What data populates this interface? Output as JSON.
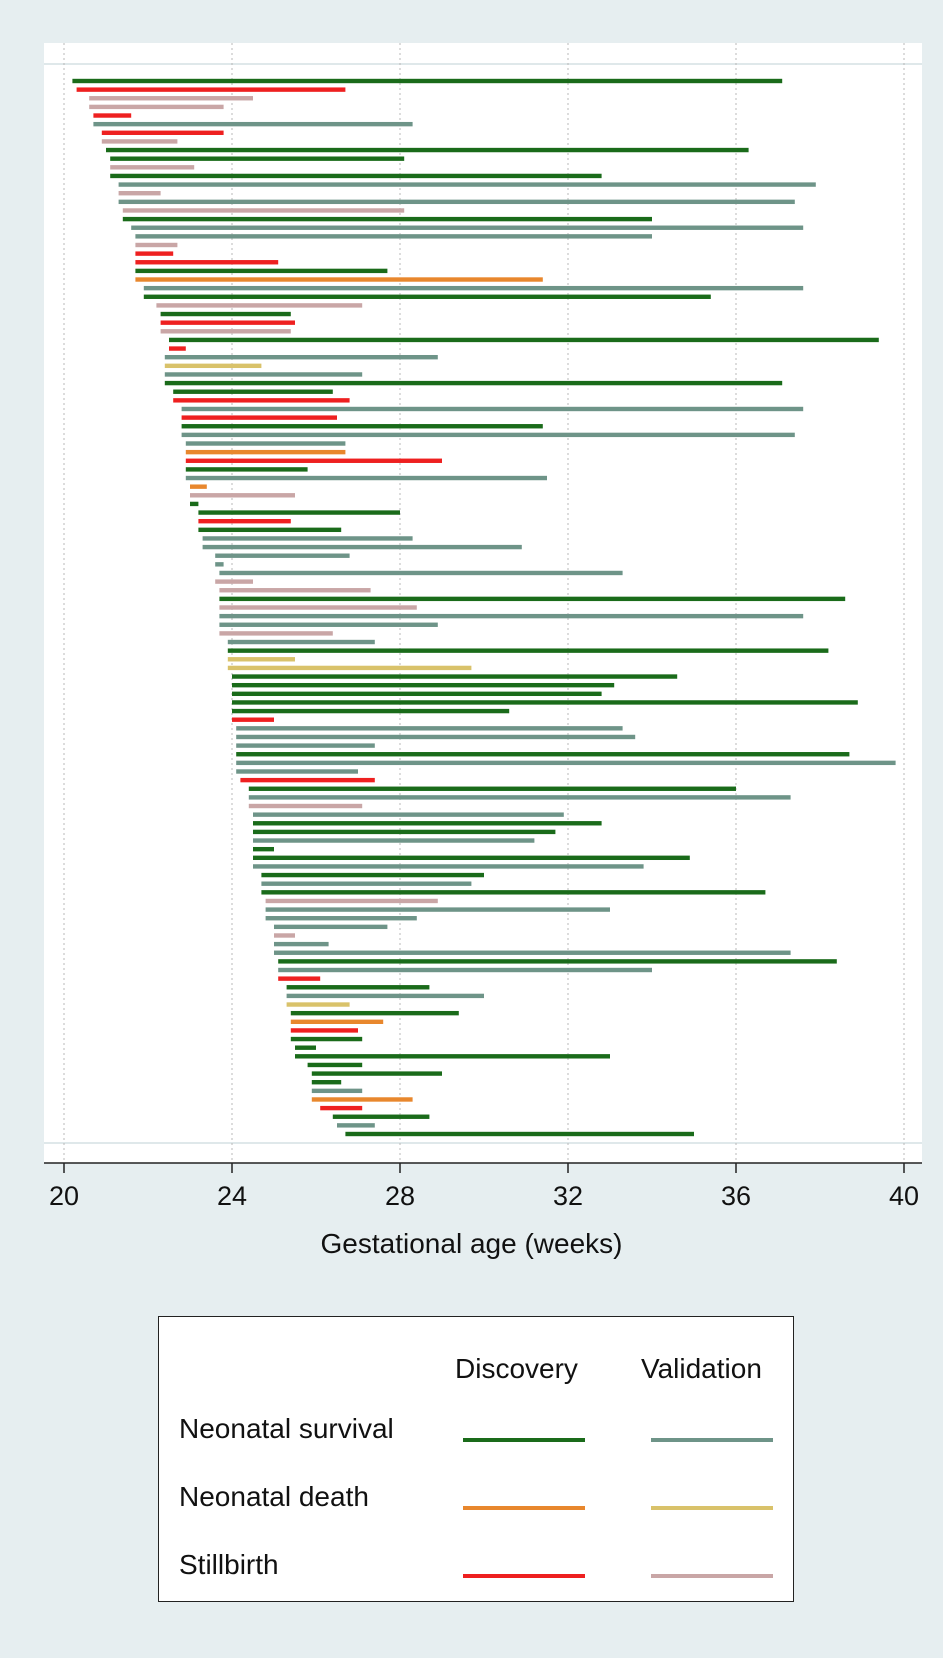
{
  "chart_data": {
    "type": "bar",
    "orientation": "horizontal-range",
    "xlabel": "Gestational age (weeks)",
    "xlim": [
      20,
      40
    ],
    "xticks": [
      "20",
      "24",
      "28",
      "32",
      "36",
      "40"
    ],
    "grid": true,
    "legend": {
      "placement": "bottom",
      "columns": [
        "Discovery",
        "Validation"
      ],
      "rows": [
        "Neonatal survival",
        "Neonatal death",
        "Stillbirth"
      ]
    },
    "colors": {
      "survival_discovery": "#1a6b1a",
      "survival_validation": "#6e9488",
      "death_discovery": "#e8872d",
      "death_validation": "#d9c26a",
      "stillbirth_discovery": "#ee2020",
      "stillbirth_validation": "#c9a6a6"
    },
    "series": [
      {
        "key": "survival_discovery"
      },
      {
        "key": "survival_validation"
      },
      {
        "key": "death_discovery"
      },
      {
        "key": "death_validation"
      },
      {
        "key": "stillbirth_discovery"
      },
      {
        "key": "stillbirth_validation"
      }
    ],
    "bars": [
      {
        "start": 20.2,
        "end": 37.1,
        "group": "survival_discovery"
      },
      {
        "start": 20.3,
        "end": 26.7,
        "group": "stillbirth_discovery"
      },
      {
        "start": 20.6,
        "end": 24.5,
        "group": "stillbirth_validation"
      },
      {
        "start": 20.6,
        "end": 23.8,
        "group": "stillbirth_validation"
      },
      {
        "start": 20.7,
        "end": 21.6,
        "group": "stillbirth_discovery"
      },
      {
        "start": 20.7,
        "end": 28.3,
        "group": "survival_validation"
      },
      {
        "start": 20.9,
        "end": 23.8,
        "group": "stillbirth_discovery"
      },
      {
        "start": 20.9,
        "end": 22.7,
        "group": "stillbirth_validation"
      },
      {
        "start": 21.0,
        "end": 36.3,
        "group": "survival_discovery"
      },
      {
        "start": 21.1,
        "end": 28.1,
        "group": "survival_discovery"
      },
      {
        "start": 21.1,
        "end": 23.1,
        "group": "stillbirth_validation"
      },
      {
        "start": 21.1,
        "end": 32.8,
        "group": "survival_discovery"
      },
      {
        "start": 21.3,
        "end": 37.9,
        "group": "survival_validation"
      },
      {
        "start": 21.3,
        "end": 22.3,
        "group": "stillbirth_validation"
      },
      {
        "start": 21.3,
        "end": 37.4,
        "group": "survival_validation"
      },
      {
        "start": 21.4,
        "end": 28.1,
        "group": "stillbirth_validation"
      },
      {
        "start": 21.4,
        "end": 34.0,
        "group": "survival_discovery"
      },
      {
        "start": 21.6,
        "end": 37.6,
        "group": "survival_validation"
      },
      {
        "start": 21.7,
        "end": 34.0,
        "group": "survival_validation"
      },
      {
        "start": 21.7,
        "end": 22.7,
        "group": "stillbirth_validation"
      },
      {
        "start": 21.7,
        "end": 22.6,
        "group": "stillbirth_discovery"
      },
      {
        "start": 21.7,
        "end": 25.1,
        "group": "stillbirth_discovery"
      },
      {
        "start": 21.7,
        "end": 27.7,
        "group": "survival_discovery"
      },
      {
        "start": 21.7,
        "end": 31.4,
        "group": "death_discovery"
      },
      {
        "start": 21.9,
        "end": 37.6,
        "group": "survival_validation"
      },
      {
        "start": 21.9,
        "end": 35.4,
        "group": "survival_discovery"
      },
      {
        "start": 22.2,
        "end": 27.1,
        "group": "stillbirth_validation"
      },
      {
        "start": 22.3,
        "end": 25.4,
        "group": "survival_discovery"
      },
      {
        "start": 22.3,
        "end": 25.5,
        "group": "stillbirth_discovery"
      },
      {
        "start": 22.3,
        "end": 25.4,
        "group": "stillbirth_validation"
      },
      {
        "start": 22.5,
        "end": 39.4,
        "group": "survival_discovery"
      },
      {
        "start": 22.5,
        "end": 22.9,
        "group": "stillbirth_discovery"
      },
      {
        "start": 22.4,
        "end": 28.9,
        "group": "survival_validation"
      },
      {
        "start": 22.4,
        "end": 24.7,
        "group": "death_validation"
      },
      {
        "start": 22.4,
        "end": 27.1,
        "group": "survival_validation"
      },
      {
        "start": 22.4,
        "end": 37.1,
        "group": "survival_discovery"
      },
      {
        "start": 22.6,
        "end": 26.4,
        "group": "survival_discovery"
      },
      {
        "start": 22.6,
        "end": 26.8,
        "group": "stillbirth_discovery"
      },
      {
        "start": 22.8,
        "end": 37.6,
        "group": "survival_validation"
      },
      {
        "start": 22.8,
        "end": 26.5,
        "group": "stillbirth_discovery"
      },
      {
        "start": 22.8,
        "end": 31.4,
        "group": "survival_discovery"
      },
      {
        "start": 22.8,
        "end": 37.4,
        "group": "survival_validation"
      },
      {
        "start": 22.9,
        "end": 26.7,
        "group": "survival_validation"
      },
      {
        "start": 22.9,
        "end": 26.7,
        "group": "death_discovery"
      },
      {
        "start": 22.9,
        "end": 29.0,
        "group": "stillbirth_discovery"
      },
      {
        "start": 22.9,
        "end": 25.8,
        "group": "survival_discovery"
      },
      {
        "start": 22.9,
        "end": 31.5,
        "group": "survival_validation"
      },
      {
        "start": 23.0,
        "end": 23.4,
        "group": "death_discovery"
      },
      {
        "start": 23.0,
        "end": 25.5,
        "group": "stillbirth_validation"
      },
      {
        "start": 23.0,
        "end": 23.2,
        "group": "survival_discovery"
      },
      {
        "start": 23.2,
        "end": 28.0,
        "group": "survival_discovery"
      },
      {
        "start": 23.2,
        "end": 25.4,
        "group": "stillbirth_discovery"
      },
      {
        "start": 23.2,
        "end": 26.6,
        "group": "survival_discovery"
      },
      {
        "start": 23.3,
        "end": 28.3,
        "group": "survival_validation"
      },
      {
        "start": 23.3,
        "end": 30.9,
        "group": "survival_validation"
      },
      {
        "start": 23.6,
        "end": 26.8,
        "group": "survival_validation"
      },
      {
        "start": 23.6,
        "end": 23.8,
        "group": "survival_validation"
      },
      {
        "start": 23.7,
        "end": 33.3,
        "group": "survival_validation"
      },
      {
        "start": 23.6,
        "end": 24.5,
        "group": "stillbirth_validation"
      },
      {
        "start": 23.7,
        "end": 27.3,
        "group": "stillbirth_validation"
      },
      {
        "start": 23.7,
        "end": 38.6,
        "group": "survival_discovery"
      },
      {
        "start": 23.7,
        "end": 28.4,
        "group": "stillbirth_validation"
      },
      {
        "start": 23.7,
        "end": 37.6,
        "group": "survival_validation"
      },
      {
        "start": 23.7,
        "end": 28.9,
        "group": "survival_validation"
      },
      {
        "start": 23.7,
        "end": 26.4,
        "group": "stillbirth_validation"
      },
      {
        "start": 23.9,
        "end": 27.4,
        "group": "survival_validation"
      },
      {
        "start": 23.9,
        "end": 38.2,
        "group": "survival_discovery"
      },
      {
        "start": 23.9,
        "end": 25.5,
        "group": "death_validation"
      },
      {
        "start": 23.9,
        "end": 29.7,
        "group": "death_validation"
      },
      {
        "start": 24.0,
        "end": 34.6,
        "group": "survival_discovery"
      },
      {
        "start": 24.0,
        "end": 33.1,
        "group": "survival_discovery"
      },
      {
        "start": 24.0,
        "end": 32.8,
        "group": "survival_discovery"
      },
      {
        "start": 24.0,
        "end": 38.9,
        "group": "survival_discovery"
      },
      {
        "start": 24.0,
        "end": 30.6,
        "group": "survival_discovery"
      },
      {
        "start": 24.0,
        "end": 25.0,
        "group": "stillbirth_discovery"
      },
      {
        "start": 24.1,
        "end": 33.3,
        "group": "survival_validation"
      },
      {
        "start": 24.1,
        "end": 33.6,
        "group": "survival_validation"
      },
      {
        "start": 24.1,
        "end": 27.4,
        "group": "survival_validation"
      },
      {
        "start": 24.1,
        "end": 38.7,
        "group": "survival_discovery"
      },
      {
        "start": 24.1,
        "end": 39.8,
        "group": "survival_validation"
      },
      {
        "start": 24.1,
        "end": 27.0,
        "group": "survival_validation"
      },
      {
        "start": 24.2,
        "end": 27.4,
        "group": "stillbirth_discovery"
      },
      {
        "start": 24.4,
        "end": 36.0,
        "group": "survival_discovery"
      },
      {
        "start": 24.4,
        "end": 37.3,
        "group": "survival_validation"
      },
      {
        "start": 24.4,
        "end": 27.1,
        "group": "stillbirth_validation"
      },
      {
        "start": 24.5,
        "end": 31.9,
        "group": "survival_validation"
      },
      {
        "start": 24.5,
        "end": 32.8,
        "group": "survival_discovery"
      },
      {
        "start": 24.5,
        "end": 31.7,
        "group": "survival_discovery"
      },
      {
        "start": 24.5,
        "end": 31.2,
        "group": "survival_validation"
      },
      {
        "start": 24.5,
        "end": 25.0,
        "group": "survival_discovery"
      },
      {
        "start": 24.5,
        "end": 34.9,
        "group": "survival_discovery"
      },
      {
        "start": 24.5,
        "end": 33.8,
        "group": "survival_validation"
      },
      {
        "start": 24.7,
        "end": 30.0,
        "group": "survival_discovery"
      },
      {
        "start": 24.7,
        "end": 29.7,
        "group": "survival_validation"
      },
      {
        "start": 24.7,
        "end": 36.7,
        "group": "survival_discovery"
      },
      {
        "start": 24.8,
        "end": 28.9,
        "group": "stillbirth_validation"
      },
      {
        "start": 24.8,
        "end": 33.0,
        "group": "survival_validation"
      },
      {
        "start": 24.8,
        "end": 28.4,
        "group": "survival_validation"
      },
      {
        "start": 25.0,
        "end": 27.7,
        "group": "survival_validation"
      },
      {
        "start": 25.0,
        "end": 25.5,
        "group": "stillbirth_validation"
      },
      {
        "start": 25.0,
        "end": 26.3,
        "group": "survival_validation"
      },
      {
        "start": 25.0,
        "end": 37.3,
        "group": "survival_validation"
      },
      {
        "start": 25.1,
        "end": 38.4,
        "group": "survival_discovery"
      },
      {
        "start": 25.1,
        "end": 34.0,
        "group": "survival_validation"
      },
      {
        "start": 25.1,
        "end": 26.1,
        "group": "stillbirth_discovery"
      },
      {
        "start": 25.3,
        "end": 28.7,
        "group": "survival_discovery"
      },
      {
        "start": 25.3,
        "end": 30.0,
        "group": "survival_validation"
      },
      {
        "start": 25.3,
        "end": 26.8,
        "group": "death_validation"
      },
      {
        "start": 25.4,
        "end": 29.4,
        "group": "survival_discovery"
      },
      {
        "start": 25.4,
        "end": 27.6,
        "group": "death_discovery"
      },
      {
        "start": 25.4,
        "end": 27.0,
        "group": "stillbirth_discovery"
      },
      {
        "start": 25.4,
        "end": 27.1,
        "group": "survival_discovery"
      },
      {
        "start": 25.5,
        "end": 26.0,
        "group": "survival_discovery"
      },
      {
        "start": 25.5,
        "end": 33.0,
        "group": "survival_discovery"
      },
      {
        "start": 25.8,
        "end": 27.1,
        "group": "survival_discovery"
      },
      {
        "start": 25.9,
        "end": 29.0,
        "group": "survival_discovery"
      },
      {
        "start": 25.9,
        "end": 26.6,
        "group": "survival_discovery"
      },
      {
        "start": 25.9,
        "end": 27.1,
        "group": "survival_validation"
      },
      {
        "start": 25.9,
        "end": 28.3,
        "group": "death_discovery"
      },
      {
        "start": 26.1,
        "end": 27.1,
        "group": "stillbirth_discovery"
      },
      {
        "start": 26.4,
        "end": 28.7,
        "group": "survival_discovery"
      },
      {
        "start": 26.5,
        "end": 27.4,
        "group": "survival_validation"
      },
      {
        "start": 26.7,
        "end": 35.0,
        "group": "survival_discovery"
      }
    ]
  }
}
